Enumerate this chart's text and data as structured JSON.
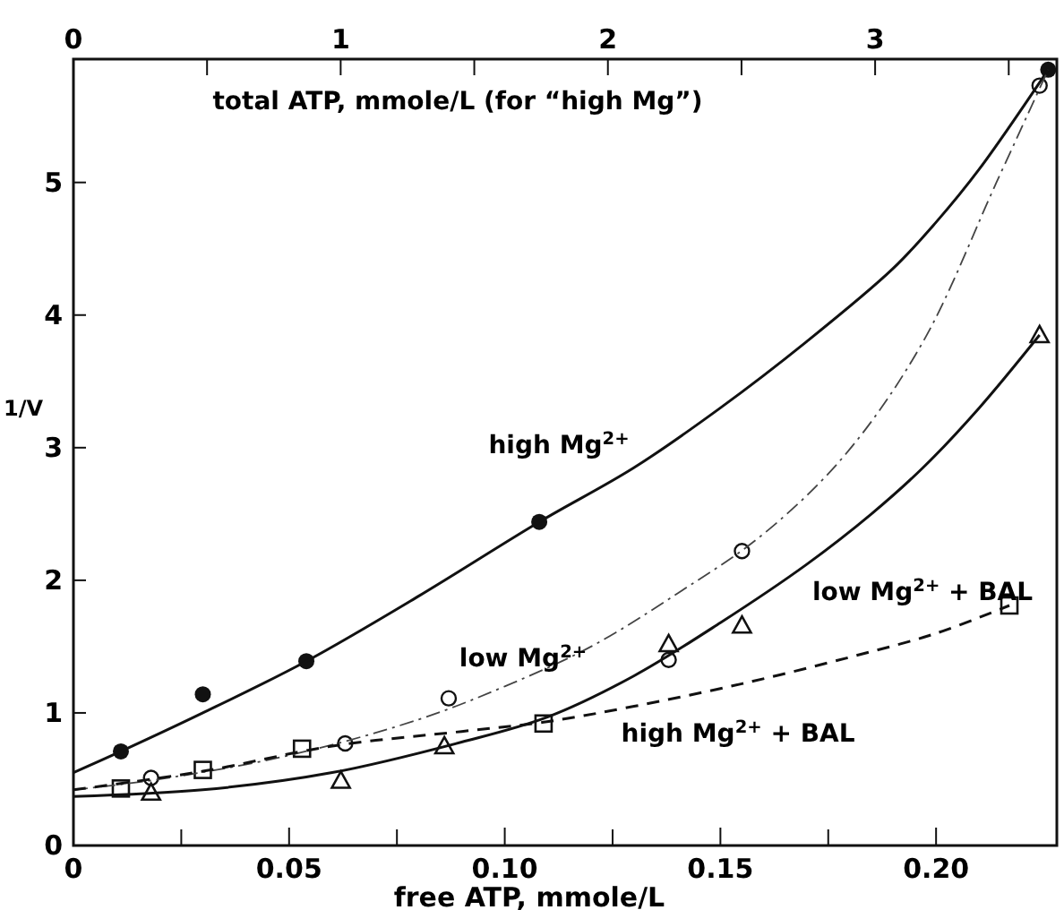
{
  "chart_data": {
    "type": "scatter",
    "xlabel": "free ATP, mmole/L",
    "ylabel": "1/V",
    "x2label": "total ATP, mmole/L (for “high Mg”)",
    "xlim": [
      0,
      0.228
    ],
    "xticks": [
      0,
      {
        "value": 0.025,
        "label": null
      },
      {
        "value": 0.05,
        "label": "0.05"
      },
      {
        "value": 0.075,
        "label": null
      },
      {
        "value": 0.1,
        "label": "0.10"
      },
      {
        "value": 0.125,
        "label": null
      },
      {
        "value": 0.15,
        "label": "0.15"
      },
      {
        "value": 0.175,
        "label": null
      },
      {
        "value": 0.2,
        "label": "0.20"
      }
    ],
    "x2lim": [
      0,
      3.68
    ],
    "x2ticks": [
      0,
      {
        "value": 0.5,
        "label": null
      },
      1,
      {
        "value": 1.5,
        "label": null
      },
      2,
      {
        "value": 2.5,
        "label": null
      },
      3,
      {
        "value": 3.5,
        "label": null
      }
    ],
    "ylim": [
      0,
      5.93
    ],
    "yticks": [
      0,
      1,
      2,
      3,
      4,
      5
    ],
    "grid": false,
    "series": [
      {
        "marker": "circle",
        "color": "#111111",
        "x": [
          0.011,
          0.03,
          0.054,
          0.108,
          0.226
        ],
        "values": [
          0.71,
          1.14,
          1.39,
          2.44,
          5.85
        ]
      },
      {
        "marker": "open circle",
        "color": "#111111",
        "x": [
          0.018,
          0.063,
          0.087,
          0.138,
          0.155,
          0.224
        ],
        "values": [
          0.51,
          0.77,
          1.11,
          1.4,
          2.22,
          5.73
        ]
      },
      {
        "marker": "triangle",
        "color": "#111111",
        "x": [
          0.018,
          0.062,
          0.086,
          0.138,
          0.155,
          0.224
        ],
        "values": [
          0.4,
          0.49,
          0.75,
          1.52,
          1.66,
          3.85
        ]
      },
      {
        "marker": "square",
        "color": "#111111",
        "x": [
          0.011,
          0.03,
          0.053,
          0.109,
          0.217
        ],
        "values": [
          0.43,
          0.57,
          0.73,
          0.92,
          1.81
        ]
      },
      {
        "type": "line",
        "line_style": "solid",
        "color": "#111111",
        "x": [
          0,
          0.011,
          0.03,
          0.054,
          0.08,
          0.108,
          0.13,
          0.15,
          0.17,
          0.19,
          0.2,
          0.21,
          0.226
        ],
        "values": [
          0.55,
          0.71,
          1.0,
          1.39,
          1.88,
          2.44,
          2.85,
          3.3,
          3.8,
          4.35,
          4.7,
          5.1,
          5.85
        ]
      },
      {
        "type": "line",
        "line_style": "dashdot",
        "color": "#444444",
        "x": [
          0,
          0.02,
          0.05,
          0.08,
          0.1,
          0.12,
          0.14,
          0.16,
          0.179,
          0.197,
          0.214,
          0.226
        ],
        "values": [
          0.42,
          0.5,
          0.68,
          0.95,
          1.2,
          1.5,
          1.9,
          2.35,
          2.95,
          3.8,
          5.0,
          5.85
        ]
      },
      {
        "type": "line",
        "line_style": "solid",
        "color": "#111111",
        "x": [
          0,
          0.03,
          0.06,
          0.09,
          0.11,
          0.13,
          0.15,
          0.17,
          0.185,
          0.197,
          0.21,
          0.224
        ],
        "values": [
          0.37,
          0.42,
          0.55,
          0.78,
          0.97,
          1.28,
          1.68,
          2.12,
          2.5,
          2.85,
          3.3,
          3.85
        ]
      },
      {
        "type": "line",
        "line_style": "dashed",
        "color": "#111111",
        "x": [
          0,
          0.03,
          0.06,
          0.09,
          0.109,
          0.13,
          0.155,
          0.18,
          0.2,
          0.217
        ],
        "values": [
          0.42,
          0.56,
          0.75,
          0.86,
          0.93,
          1.05,
          1.22,
          1.42,
          1.6,
          1.81
        ]
      }
    ],
    "annotations": [
      "high Mg$^{2+}$",
      "low Mg$^{2+}$",
      "low Mg$^{2+}$ + BAL",
      "high Mg$^{2+}$ + BAL"
    ]
  }
}
